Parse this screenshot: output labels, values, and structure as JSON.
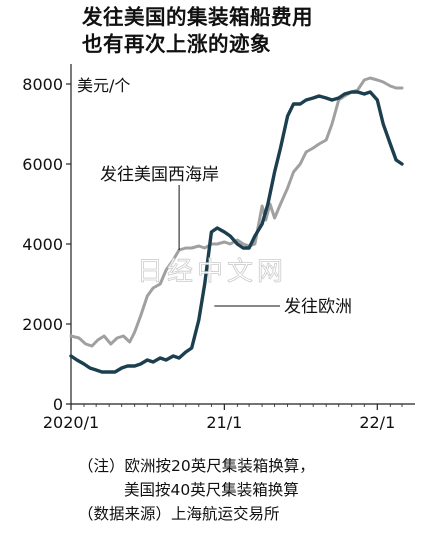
{
  "title_lines": [
    "发往美国的集装箱船费用",
    "也有再次上涨的迹象"
  ],
  "chart_data": {
    "type": "line",
    "ylabel": "美元/个",
    "ylim": [
      0,
      8000
    ],
    "yticks": [
      0,
      2000,
      4000,
      6000,
      8000
    ],
    "xlim": [
      "2020-01",
      "2022-04"
    ],
    "xticks": [
      {
        "label": "2020/1",
        "x": "2020-01"
      },
      {
        "label": "21/1",
        "x": "2021-01"
      },
      {
        "label": "22/1",
        "x": "2022-01"
      }
    ],
    "series": [
      {
        "name": "发往美国西海岸",
        "color": "#a0a0a0",
        "points": [
          [
            "2020-01-01",
            1700
          ],
          [
            "2020-01-20",
            1650
          ],
          [
            "2020-02-05",
            1500
          ],
          [
            "2020-02-20",
            1450
          ],
          [
            "2020-03-05",
            1600
          ],
          [
            "2020-03-20",
            1700
          ],
          [
            "2020-04-05",
            1500
          ],
          [
            "2020-04-20",
            1650
          ],
          [
            "2020-05-05",
            1700
          ],
          [
            "2020-05-20",
            1550
          ],
          [
            "2020-06-01",
            1800
          ],
          [
            "2020-06-15",
            2200
          ],
          [
            "2020-07-01",
            2700
          ],
          [
            "2020-07-15",
            2900
          ],
          [
            "2020-08-01",
            3000
          ],
          [
            "2020-08-15",
            3350
          ],
          [
            "2020-09-01",
            3600
          ],
          [
            "2020-09-15",
            3850
          ],
          [
            "2020-10-01",
            3900
          ],
          [
            "2020-10-15",
            3900
          ],
          [
            "2020-11-01",
            3950
          ],
          [
            "2020-11-15",
            3900
          ],
          [
            "2020-12-01",
            4000
          ],
          [
            "2020-12-15",
            4000
          ],
          [
            "2021-01-01",
            4050
          ],
          [
            "2021-01-15",
            4000
          ],
          [
            "2021-02-01",
            4100
          ],
          [
            "2021-02-15",
            4000
          ],
          [
            "2021-03-01",
            3950
          ],
          [
            "2021-03-15",
            4000
          ],
          [
            "2021-04-01",
            4950
          ],
          [
            "2021-04-10",
            4600
          ],
          [
            "2021-04-20",
            5000
          ],
          [
            "2021-05-01",
            4650
          ],
          [
            "2021-05-15",
            5000
          ],
          [
            "2021-06-01",
            5400
          ],
          [
            "2021-06-15",
            5800
          ],
          [
            "2021-07-01",
            6000
          ],
          [
            "2021-07-15",
            6300
          ],
          [
            "2021-08-01",
            6400
          ],
          [
            "2021-08-15",
            6500
          ],
          [
            "2021-09-01",
            6600
          ],
          [
            "2021-09-15",
            7000
          ],
          [
            "2021-10-01",
            7600
          ],
          [
            "2021-10-15",
            7700
          ],
          [
            "2021-11-01",
            7800
          ],
          [
            "2021-11-15",
            7850
          ],
          [
            "2021-12-01",
            8100
          ],
          [
            "2021-12-15",
            8150
          ],
          [
            "2022-01-01",
            8100
          ],
          [
            "2022-01-15",
            8050
          ],
          [
            "2022-02-01",
            7950
          ],
          [
            "2022-02-15",
            7900
          ],
          [
            "2022-03-01",
            7900
          ]
        ]
      },
      {
        "name": "发往欧洲",
        "color": "#1c3f4f",
        "points": [
          [
            "2020-01-01",
            1200
          ],
          [
            "2020-01-15",
            1100
          ],
          [
            "2020-02-01",
            1000
          ],
          [
            "2020-02-15",
            900
          ],
          [
            "2020-03-01",
            850
          ],
          [
            "2020-03-15",
            800
          ],
          [
            "2020-04-01",
            800
          ],
          [
            "2020-04-15",
            800
          ],
          [
            "2020-05-01",
            900
          ],
          [
            "2020-05-15",
            950
          ],
          [
            "2020-06-01",
            950
          ],
          [
            "2020-06-15",
            1000
          ],
          [
            "2020-07-01",
            1100
          ],
          [
            "2020-07-15",
            1050
          ],
          [
            "2020-08-01",
            1150
          ],
          [
            "2020-08-15",
            1100
          ],
          [
            "2020-09-01",
            1200
          ],
          [
            "2020-09-15",
            1150
          ],
          [
            "2020-10-01",
            1300
          ],
          [
            "2020-10-15",
            1400
          ],
          [
            "2020-11-01",
            2100
          ],
          [
            "2020-11-15",
            3000
          ],
          [
            "2020-12-01",
            4300
          ],
          [
            "2020-12-15",
            4400
          ],
          [
            "2021-01-01",
            4300
          ],
          [
            "2021-01-15",
            4200
          ],
          [
            "2021-02-01",
            4000
          ],
          [
            "2021-02-15",
            3900
          ],
          [
            "2021-03-01",
            3900
          ],
          [
            "2021-03-15",
            4200
          ],
          [
            "2021-04-01",
            4500
          ],
          [
            "2021-04-15",
            5000
          ],
          [
            "2021-05-01",
            5800
          ],
          [
            "2021-05-15",
            6400
          ],
          [
            "2021-06-01",
            7200
          ],
          [
            "2021-06-15",
            7500
          ],
          [
            "2021-07-01",
            7500
          ],
          [
            "2021-07-15",
            7600
          ],
          [
            "2021-08-01",
            7650
          ],
          [
            "2021-08-15",
            7700
          ],
          [
            "2021-09-01",
            7650
          ],
          [
            "2021-09-15",
            7600
          ],
          [
            "2021-10-01",
            7650
          ],
          [
            "2021-10-15",
            7750
          ],
          [
            "2021-11-01",
            7800
          ],
          [
            "2021-11-15",
            7800
          ],
          [
            "2021-12-01",
            7750
          ],
          [
            "2021-12-15",
            7800
          ],
          [
            "2022-01-01",
            7600
          ],
          [
            "2022-01-15",
            7000
          ],
          [
            "2022-02-01",
            6500
          ],
          [
            "2022-02-15",
            6100
          ],
          [
            "2022-03-01",
            6000
          ]
        ]
      }
    ]
  },
  "watermark": "日经中文网",
  "notes": [
    "（注）欧洲按20英尺集装箱换算，",
    "美国按40英尺集装箱换算",
    "（数据来源）上海航运交易所"
  ]
}
